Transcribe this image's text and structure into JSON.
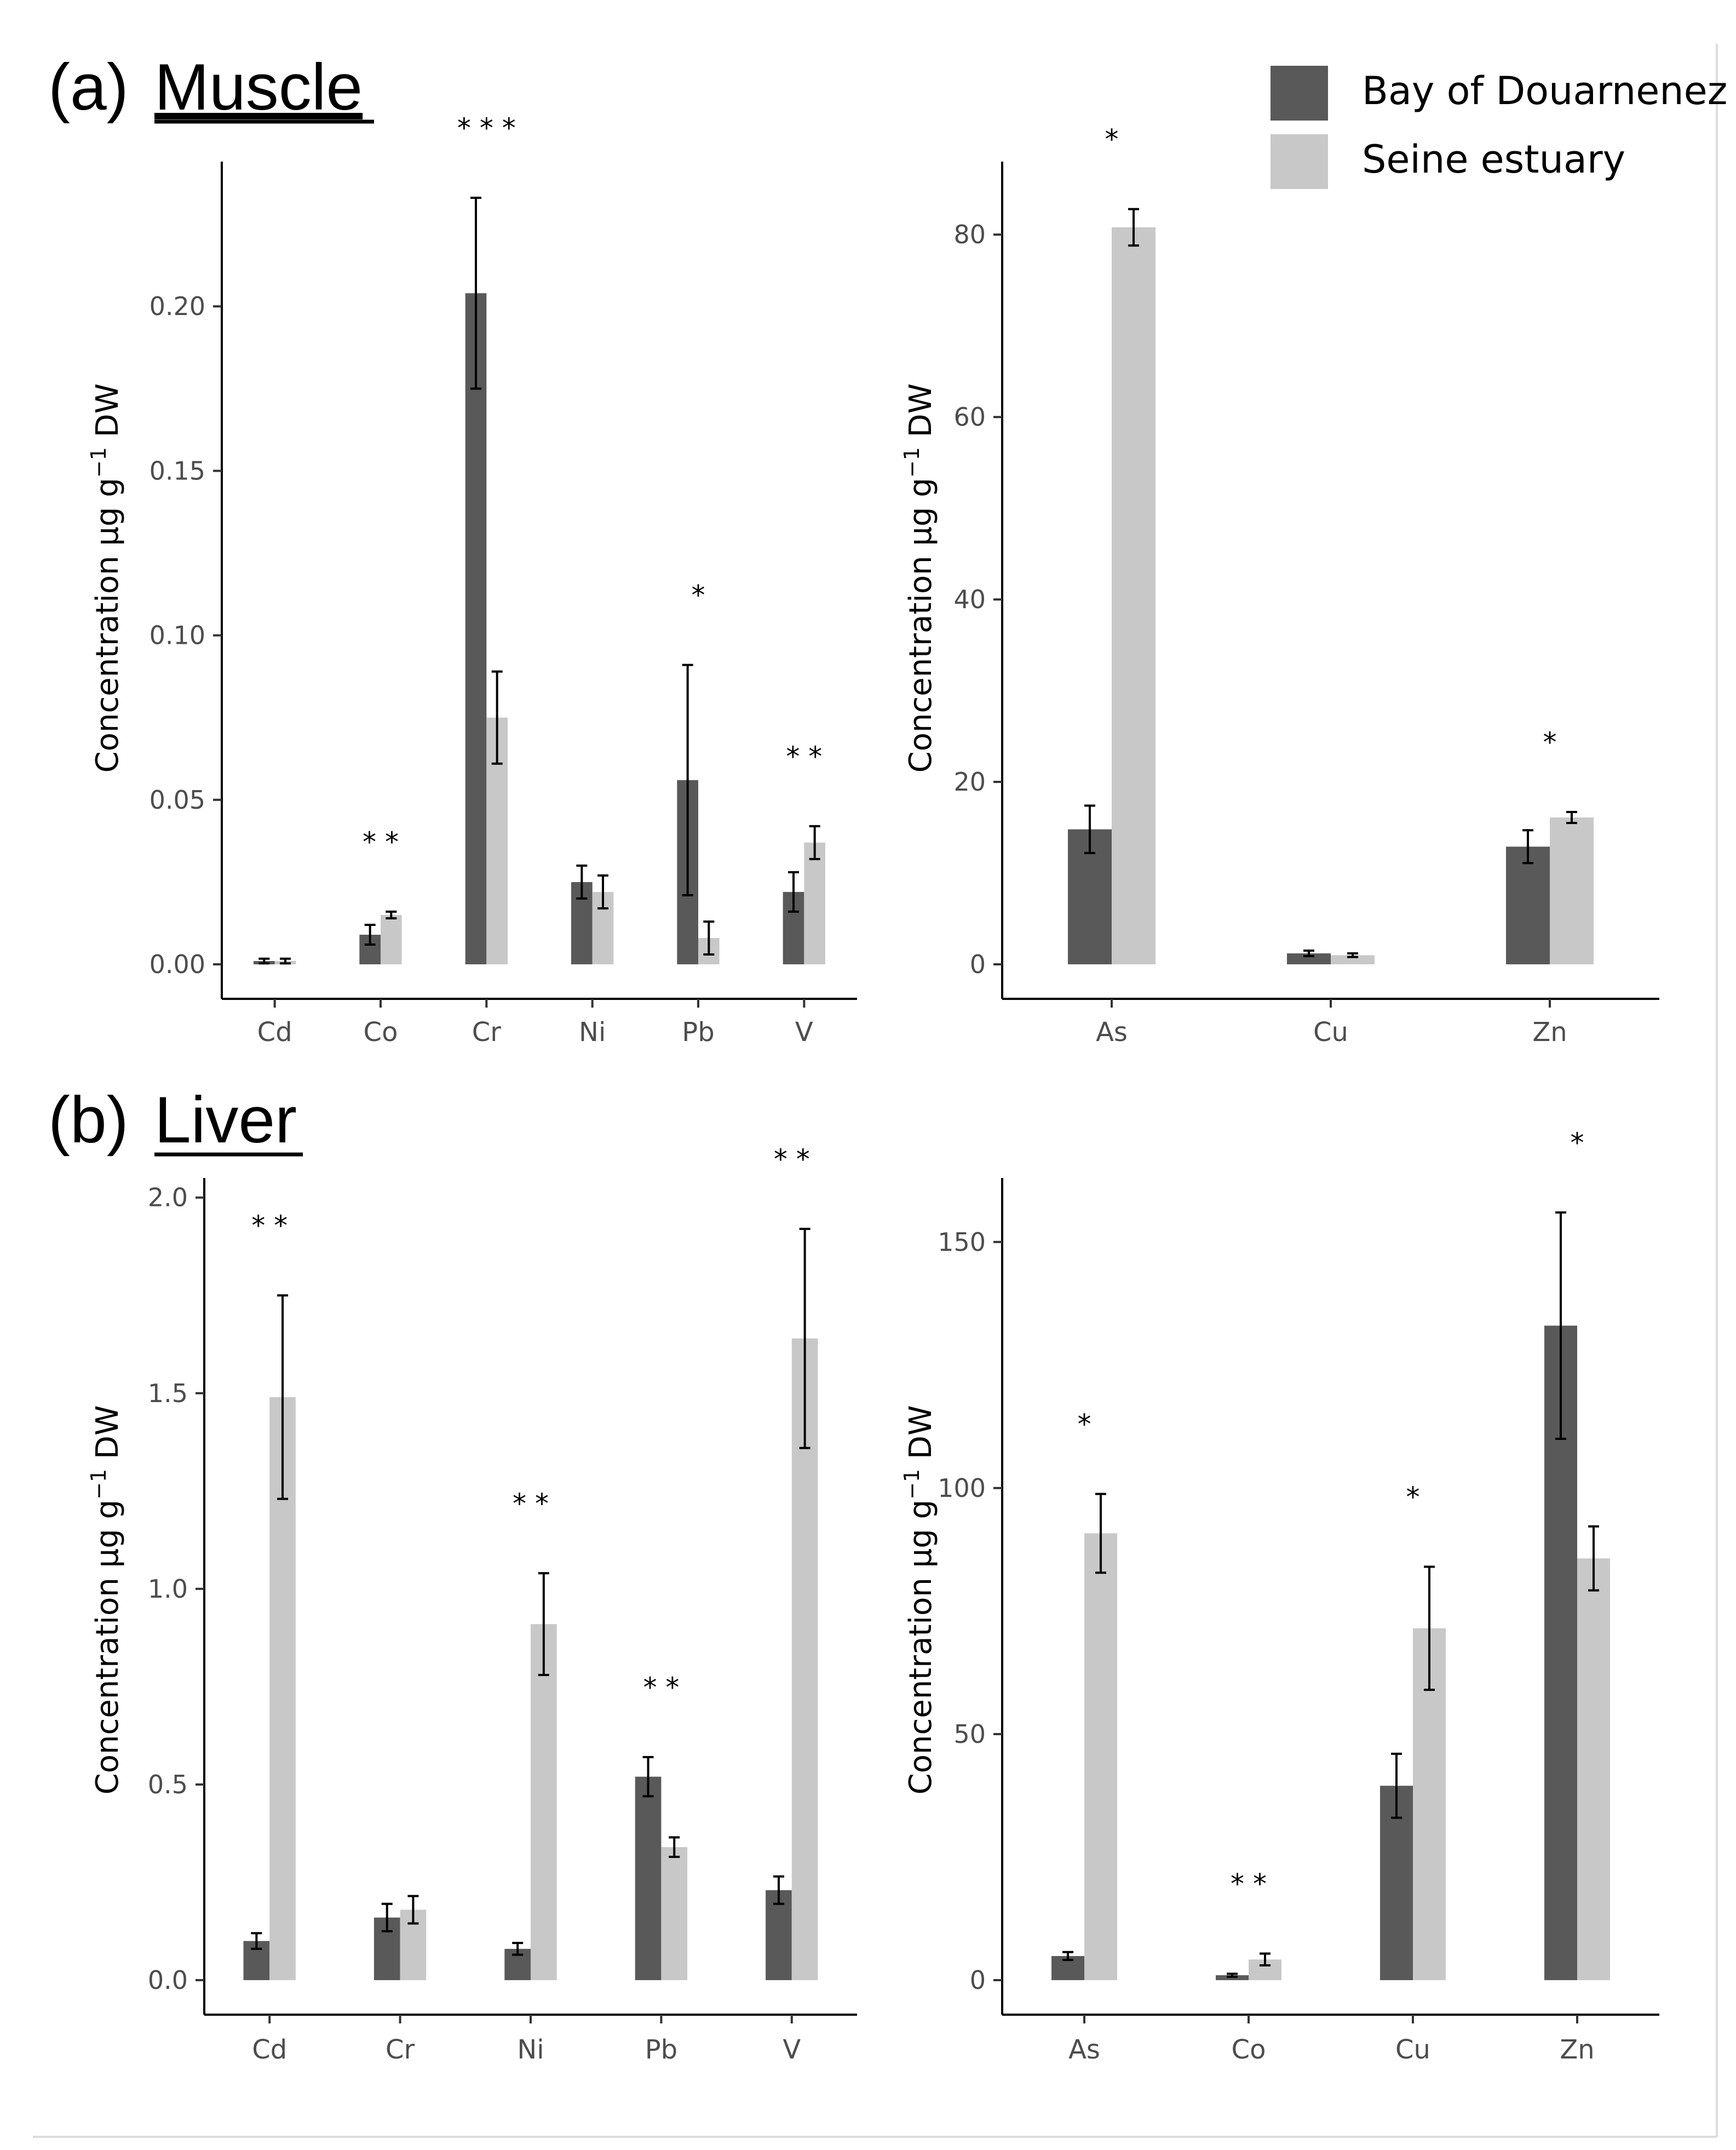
{
  "colors": {
    "bay": "#595959",
    "seine": "#c8c8c8",
    "axis": "#000000",
    "tick_text": "#4d4d4d"
  },
  "legend": {
    "bay_label": "Bay of Douarnenez",
    "seine_label": "Seine estuary",
    "position": "top-right"
  },
  "panels": {
    "a": {
      "prefix": "(a)",
      "label": "Muscle"
    },
    "b": {
      "prefix": "(b)",
      "label": "Liver"
    }
  },
  "y_label": {
    "main": "Concentration μg g",
    "sup": "−1",
    "suffix": " DW"
  },
  "chart_data": [
    {
      "type": "bar",
      "panel": "a",
      "categories": [
        "Cd",
        "Co",
        "Cr",
        "Ni",
        "Pb",
        "V"
      ],
      "series": [
        {
          "name": "Bay of Douarnenez",
          "values": [
            0.001,
            0.009,
            0.204,
            0.025,
            0.056,
            0.022
          ],
          "errors": [
            0.0007,
            0.003,
            0.029,
            0.005,
            0.035,
            0.006
          ]
        },
        {
          "name": "Seine estuary",
          "values": [
            0.001,
            0.015,
            0.075,
            0.022,
            0.008,
            0.037
          ],
          "errors": [
            0.0007,
            0.001,
            0.014,
            0.005,
            0.005,
            0.005
          ]
        }
      ],
      "significance": [
        "",
        "* *",
        "* * *",
        "",
        "*",
        "* *"
      ],
      "ylim": [
        0,
        0.244
      ],
      "yticks": [
        0,
        0.05,
        0.1,
        0.15,
        0.2
      ],
      "ytick_labels": [
        "0.00",
        "0.05",
        "0.10",
        "0.15",
        "0.20"
      ],
      "xlabel": "",
      "ylabel": "Concentration μg g−1 DW"
    },
    {
      "type": "bar",
      "panel": "a",
      "categories": [
        "As",
        "Cu",
        "Zn"
      ],
      "series": [
        {
          "name": "Bay of Douarnenez",
          "values": [
            14.8,
            1.2,
            12.9
          ],
          "errors": [
            2.6,
            0.3,
            1.8
          ]
        },
        {
          "name": "Seine estuary",
          "values": [
            80.8,
            1.0,
            16.1
          ],
          "errors": [
            2.0,
            0.2,
            0.6
          ]
        }
      ],
      "significance": [
        "*",
        "",
        "*"
      ],
      "ylim": [
        0,
        88
      ],
      "yticks": [
        0,
        20,
        40,
        60,
        80
      ],
      "ytick_labels": [
        "0",
        "20",
        "40",
        "60",
        "80"
      ],
      "xlabel": "",
      "ylabel": "Concentration μg g−1 DW"
    },
    {
      "type": "bar",
      "panel": "b",
      "categories": [
        "Cd",
        "Cr",
        "Ni",
        "Pb",
        "V"
      ],
      "series": [
        {
          "name": "Bay of Douarnenez",
          "values": [
            0.1,
            0.16,
            0.08,
            0.52,
            0.23
          ],
          "errors": [
            0.02,
            0.035,
            0.015,
            0.05,
            0.035
          ]
        },
        {
          "name": "Seine estuary",
          "values": [
            1.49,
            0.18,
            0.91,
            0.34,
            1.64
          ],
          "errors": [
            0.26,
            0.035,
            0.13,
            0.025,
            0.28
          ]
        }
      ],
      "significance": [
        "* *",
        "",
        "* *",
        "* *",
        "* *"
      ],
      "ylim": [
        0,
        2.05
      ],
      "yticks": [
        0,
        0.5,
        1,
        1.5,
        2
      ],
      "ytick_labels": [
        "0.0",
        "0.5",
        "1.0",
        "1.5",
        "2.0"
      ],
      "xlabel": "",
      "ylabel": "Concentration μg g−1 DW"
    },
    {
      "type": "bar",
      "panel": "b",
      "categories": [
        "As",
        "Co",
        "Cu",
        "Zn"
      ],
      "series": [
        {
          "name": "Bay of Douarnenez",
          "values": [
            4.9,
            1.0,
            39.5,
            133.0
          ],
          "errors": [
            0.8,
            0.3,
            6.5,
            23.0
          ]
        },
        {
          "name": "Seine estuary",
          "values": [
            90.8,
            4.2,
            71.5,
            85.7
          ],
          "errors": [
            8.0,
            1.2,
            12.5,
            6.5
          ]
        }
      ],
      "significance": [
        "*",
        "* *",
        "*",
        "*"
      ],
      "ylim": [
        0,
        163
      ],
      "yticks": [
        0,
        50,
        100,
        150
      ],
      "ytick_labels": [
        "0",
        "50",
        "100",
        "150"
      ],
      "xlabel": "",
      "ylabel": "Concentration μg g−1 DW"
    }
  ]
}
